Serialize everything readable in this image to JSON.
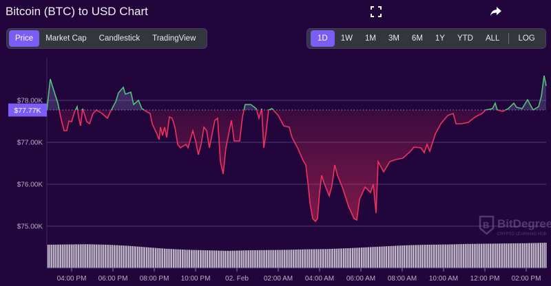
{
  "header": {
    "title": "Bitcoin (BTC) to USD Chart",
    "icons": [
      "fullscreen-icon",
      "share-icon"
    ]
  },
  "chart_tabs": [
    {
      "label": "Price",
      "active": true
    },
    {
      "label": "Market Cap",
      "active": false
    },
    {
      "label": "Candlestick",
      "active": false
    },
    {
      "label": "TradingView",
      "active": false
    }
  ],
  "ranges": [
    {
      "label": "1D",
      "active": true
    },
    {
      "label": "1W",
      "active": false
    },
    {
      "label": "1M",
      "active": false
    },
    {
      "label": "3M",
      "active": false
    },
    {
      "label": "6M",
      "active": false
    },
    {
      "label": "1Y",
      "active": false
    },
    {
      "label": "YTD",
      "active": false
    },
    {
      "label": "ALL",
      "active": false
    }
  ],
  "log_label": "LOG",
  "watermark": {
    "name": "BitDegree",
    "tagline": "CRYPTO LEARNING HUB"
  },
  "colors": {
    "background": "#22053a",
    "up": "#4fc47a",
    "down": "#f0325f",
    "accent": "#7b5cf5",
    "grid": "#3f2a66"
  },
  "chart_data": {
    "type": "line",
    "baseline_label": "$77.77K",
    "baseline": 77770,
    "ylim": [
      74400,
      79000
    ],
    "yticks": [
      {
        "value": 78000,
        "label": "$78.00K"
      },
      {
        "value": 77000,
        "label": "$77.00K"
      },
      {
        "value": 76000,
        "label": "$76.00K"
      },
      {
        "value": 75000,
        "label": "$75.00K"
      }
    ],
    "xticks": [
      "04:00 PM",
      "06:00 PM",
      "08:00 PM",
      "10:00 PM",
      "02. Feb",
      "02:00 AM",
      "04:00 AM",
      "06:00 AM",
      "08:00 AM",
      "10:00 AM",
      "12:00 PM",
      "02:00 PM"
    ],
    "xtick_times": [
      "16:00",
      "18:00",
      "20:00",
      "22:00",
      "00:00",
      "02:00",
      "04:00",
      "06:00",
      "08:00",
      "10:00",
      "12:00",
      "14:00"
    ],
    "grid": true,
    "times": [
      "14:48",
      "14:58",
      "15:06",
      "15:20",
      "15:28",
      "15:38",
      "15:46",
      "15:52",
      "16:00",
      "16:08",
      "16:16",
      "16:20",
      "16:26",
      "16:32",
      "16:44",
      "16:52",
      "17:02",
      "17:12",
      "17:28",
      "17:44",
      "17:52",
      "18:08",
      "18:16",
      "18:30",
      "18:36",
      "18:52",
      "19:00",
      "19:14",
      "19:24",
      "19:40",
      "19:48",
      "19:54",
      "20:08",
      "20:14",
      "20:18",
      "20:24",
      "20:30",
      "20:36",
      "20:44",
      "20:52",
      "21:00",
      "21:08",
      "21:16",
      "21:32",
      "21:38",
      "21:52",
      "22:00",
      "22:08",
      "22:16",
      "22:24",
      "22:32",
      "22:40",
      "22:48",
      "22:56",
      "23:04",
      "23:12",
      "23:20",
      "23:28",
      "23:44",
      "23:52",
      "00:08",
      "00:16",
      "00:24",
      "00:40",
      "00:56",
      "01:04",
      "01:12",
      "01:18",
      "01:24",
      "01:32",
      "01:42",
      "02:00",
      "02:16",
      "02:32",
      "02:40",
      "02:56",
      "03:12",
      "03:20",
      "03:26",
      "03:32",
      "03:40",
      "03:48",
      "03:54",
      "04:00",
      "04:06",
      "04:12",
      "04:28",
      "04:36",
      "04:44",
      "04:52",
      "05:08",
      "05:24",
      "05:40",
      "05:48",
      "05:56",
      "06:12",
      "06:28",
      "06:36",
      "06:44",
      "06:50",
      "07:06",
      "07:24",
      "07:42",
      "08:02",
      "08:24",
      "08:34",
      "08:54",
      "09:04",
      "09:12",
      "09:20",
      "09:36",
      "09:52",
      "10:12",
      "10:28",
      "10:36",
      "10:52",
      "11:12",
      "11:32",
      "11:52",
      "12:02",
      "12:22",
      "12:30",
      "12:36",
      "12:52",
      "13:08",
      "13:24",
      "13:32",
      "13:48",
      "14:04",
      "14:20",
      "14:36",
      "14:44",
      "14:52",
      "14:58"
    ],
    "prices": [
      77770,
      78508,
      78295,
      77934,
      77607,
      77279,
      77279,
      77508,
      77492,
      77721,
      77852,
      77607,
      77394,
      77803,
      77492,
      77443,
      77689,
      77770,
      77689,
      77574,
      77721,
      77967,
      78180,
      78311,
      78148,
      78197,
      77902,
      78000,
      77803,
      77721,
      77689,
      77443,
      77197,
      77066,
      77361,
      77164,
      77361,
      77115,
      77607,
      77574,
      77361,
      76951,
      76869,
      76951,
      76869,
      77279,
      77033,
      76705,
      76951,
      77361,
      77279,
      76869,
      77197,
      77525,
      77574,
      76541,
      76246,
      76869,
      77525,
      77033,
      77033,
      77607,
      77902,
      77902,
      77803,
      77574,
      77803,
      76869,
      77197,
      77770,
      77803,
      77639,
      77394,
      77361,
      77115,
      76869,
      76574,
      76459,
      76050,
      75558,
      75181,
      75115,
      75181,
      75804,
      76213,
      76050,
      75722,
      75968,
      76459,
      76213,
      75886,
      75476,
      75181,
      75148,
      75640,
      75935,
      75804,
      76000,
      75312,
      76541,
      76295,
      76541,
      76590,
      76623,
      76787,
      76885,
      76869,
      76754,
      76951,
      76787,
      77197,
      77443,
      77639,
      77689,
      77443,
      77443,
      77476,
      77607,
      77689,
      77770,
      77803,
      77934,
      77770,
      77738,
      77803,
      77934,
      77836,
      77803,
      78016,
      77770,
      77852,
      78098,
      78590,
      78344
    ],
    "volume_relative": [
      0.92,
      0.93,
      0.94,
      0.92,
      0.88,
      0.82,
      0.76,
      0.72,
      0.7,
      0.68,
      0.7,
      0.71,
      0.72,
      0.74,
      0.75,
      0.78,
      0.82,
      0.86,
      0.9,
      0.92,
      0.93,
      0.95,
      0.96,
      0.97,
      0.98,
      1.0
    ]
  }
}
